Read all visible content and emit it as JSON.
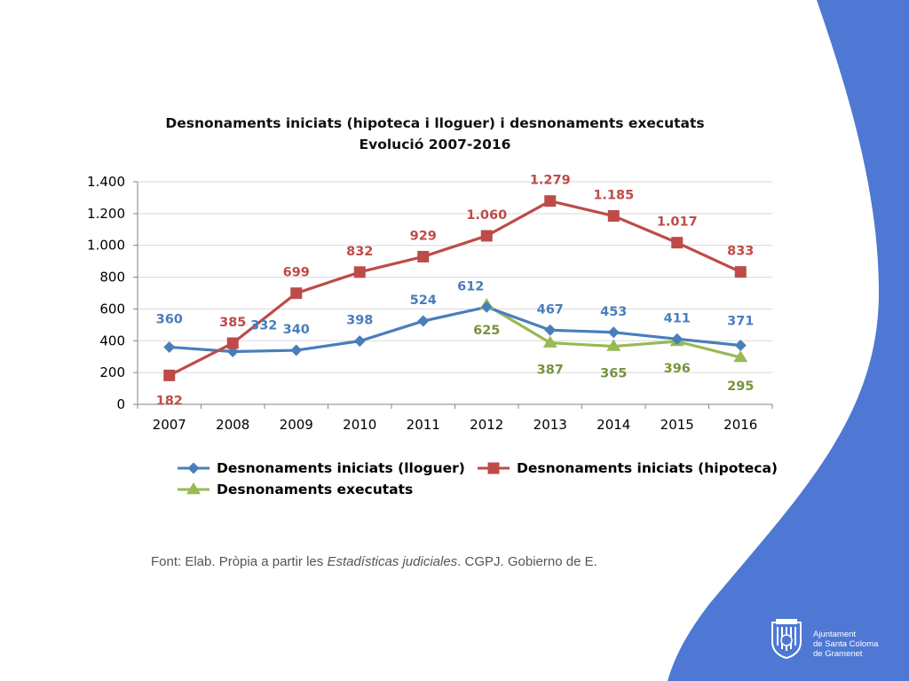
{
  "chart_data": {
    "type": "line",
    "title": "Desnonaments iniciats (hipoteca i lloguer) i  desnonaments executats",
    "subtitle": "Evolució 2007-2016",
    "categories": [
      "2007",
      "2008",
      "2009",
      "2010",
      "2011",
      "2012",
      "2013",
      "2014",
      "2015",
      "2016"
    ],
    "ylim": [
      0,
      1400
    ],
    "yticks": [
      0,
      200,
      400,
      600,
      800,
      1000,
      1200,
      1400
    ],
    "ytick_labels": [
      "0",
      "200",
      "400",
      "600",
      "800",
      "1.000",
      "1.200",
      "1.400"
    ],
    "grid": true,
    "legend_position": "bottom",
    "series": [
      {
        "name": "Desnonaments iniciats (lloguer)",
        "marker": "diamond",
        "color": "#4a7ebb",
        "values": [
          360,
          332,
          340,
          398,
          524,
          612,
          467,
          453,
          411,
          371
        ],
        "labels": [
          "360",
          "332",
          "340",
          "398",
          "524",
          "612",
          "467",
          "453",
          "411",
          "371"
        ]
      },
      {
        "name": "Desnonaments iniciats (hipoteca)",
        "marker": "square",
        "color": "#be4b48",
        "values": [
          182,
          385,
          699,
          832,
          929,
          1060,
          1279,
          1185,
          1017,
          833
        ],
        "labels": [
          "182",
          "385",
          "699",
          "832",
          "929",
          "1.060",
          "1.279",
          "1.185",
          "1.017",
          "833"
        ]
      },
      {
        "name": "Desnonaments executats",
        "marker": "triangle",
        "color": "#98b954",
        "label_color": "#77933c",
        "values": [
          null,
          null,
          null,
          null,
          null,
          625,
          387,
          365,
          396,
          295
        ],
        "labels": [
          null,
          null,
          null,
          null,
          null,
          "625",
          "387",
          "365",
          "396",
          "295"
        ]
      }
    ]
  },
  "source": {
    "prefix": "Font: Elab. Pròpia a partir les ",
    "italic": "Estadísticas judiciales",
    "suffix": ". CGPJ. Gobierno de E."
  },
  "logo": {
    "line1": "Ajuntament",
    "line2": "de Santa Coloma",
    "line3": "de Gramenet"
  },
  "colors": {
    "background_shape": "#4e78d4",
    "axis": "#868686",
    "grid": "#d9d9d9"
  }
}
